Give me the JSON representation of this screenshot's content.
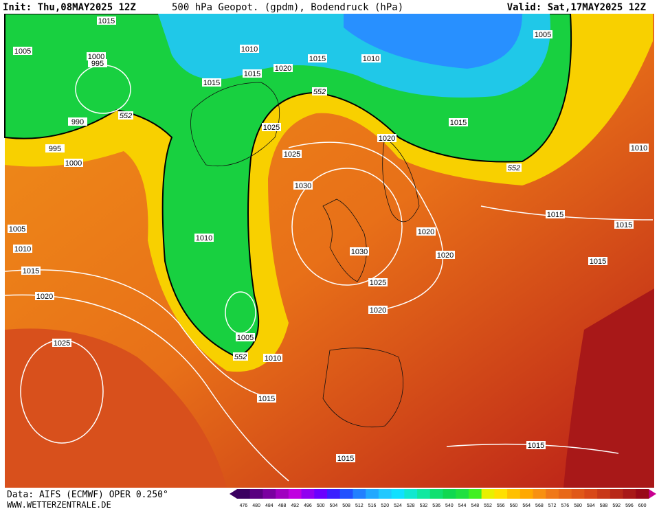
{
  "header": {
    "init": "Init: Thu,08MAY2025 12Z",
    "title": "500 hPa Geopot. (gpdm), Bodendruck (hPa)",
    "valid": "Valid: Sat,17MAY2025 12Z"
  },
  "footer": {
    "source": "Data: AIFS (ECMWF) OPER 0.250°",
    "url": "WWW.WETTERZENTRALE.DE"
  },
  "isobar_labels": [
    1015,
    1005,
    1000,
    995,
    990,
    995,
    1000,
    1005,
    1010,
    1015,
    1020,
    1025,
    1010,
    1015,
    1015,
    1020,
    1015,
    1010,
    1005,
    1025,
    1025,
    1030,
    1020,
    1015,
    1010,
    1010,
    1005,
    1010,
    1015,
    1030,
    1025,
    1020,
    1020,
    1020,
    1015,
    1015,
    1015,
    1015,
    1015
  ],
  "contour_labels": [
    552,
    552,
    552,
    552
  ],
  "colorbar": {
    "labels": [
      476,
      480,
      484,
      488,
      492,
      496,
      500,
      504,
      508,
      512,
      516,
      520,
      524,
      528,
      532,
      536,
      540,
      544,
      548,
      552,
      556,
      560,
      564,
      568,
      572,
      576,
      580,
      584,
      588,
      592,
      596,
      600
    ],
    "colors": [
      "#3a0060",
      "#5a0080",
      "#7a00a0",
      "#a000c0",
      "#c000e0",
      "#9000f0",
      "#6a00ff",
      "#3a20ff",
      "#2050ff",
      "#2080ff",
      "#20a8ff",
      "#20c8ff",
      "#10e0ff",
      "#10e8d0",
      "#10e8a0",
      "#10e070",
      "#10d850",
      "#20e040",
      "#40f020",
      "#e8f000",
      "#ffe000",
      "#ffc000",
      "#ffa800",
      "#f89010",
      "#f07818",
      "#e86818",
      "#e05818",
      "#d84818",
      "#c83818",
      "#b82818",
      "#a81818",
      "#980818"
    ]
  }
}
